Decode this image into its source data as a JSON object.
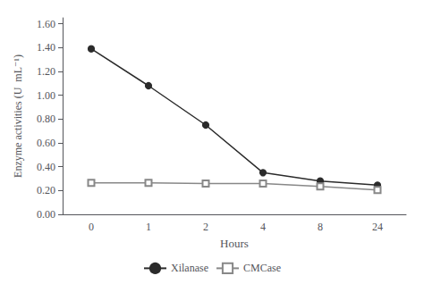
{
  "chart_data": {
    "type": "line",
    "categories": [
      "0",
      "1",
      "2",
      "4",
      "8",
      "24"
    ],
    "series": [
      {
        "name": "Xilanase",
        "color": "#2b2b2b",
        "marker": "circle",
        "values": [
          1.39,
          1.08,
          0.75,
          0.35,
          0.28,
          0.245
        ]
      },
      {
        "name": "CMCase",
        "color": "#888888",
        "marker": "square",
        "values": [
          0.265,
          0.265,
          0.258,
          0.258,
          0.235,
          0.205
        ]
      }
    ],
    "x_label": "Hours",
    "y_label": "Enzyme activities (U  mL⁻¹)",
    "ylim": [
      0.0,
      1.65
    ],
    "yticks": [
      {
        "value": 0.0,
        "label": "0.00"
      },
      {
        "value": 0.2,
        "label": "0.20"
      },
      {
        "value": 0.4,
        "label": "0.40"
      },
      {
        "value": 0.6,
        "label": "0.60"
      },
      {
        "value": 0.8,
        "label": "0.80"
      },
      {
        "value": 1.0,
        "label": "1.00"
      },
      {
        "value": 1.2,
        "label": "1.20"
      },
      {
        "value": 1.4,
        "label": "1.40"
      },
      {
        "value": 1.6,
        "label": "1.60"
      }
    ],
    "grid": false,
    "legend": "bottom"
  }
}
